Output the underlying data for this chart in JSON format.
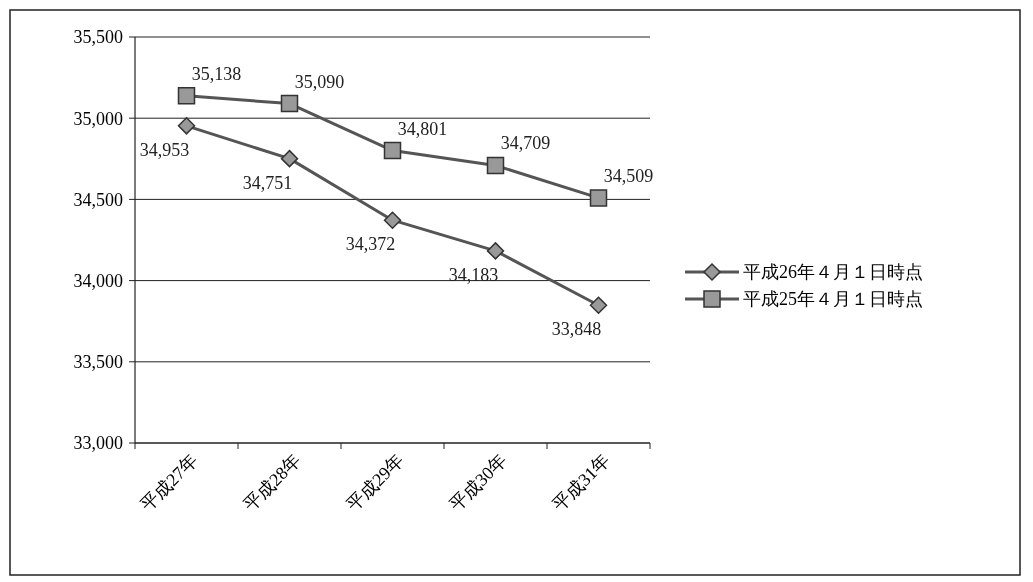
{
  "chart_data": {
    "type": "line",
    "categories": [
      "平成27年",
      "平成28年",
      "平成29年",
      "平成30年",
      "平成31年"
    ],
    "series": [
      {
        "name": "平成26年４月１日時点",
        "color": "#555555",
        "marker": "diamond",
        "values": [
          34953,
          34751,
          34372,
          34183,
          33848
        ],
        "value_labels": [
          "34,953",
          "34,751",
          "34,372",
          "34,183",
          "33,848"
        ]
      },
      {
        "name": "平成25年４月１日時点",
        "color": "#555555",
        "marker": "square",
        "values": [
          35138,
          35090,
          34801,
          34709,
          34509
        ],
        "value_labels": [
          "35,138",
          "35,090",
          "34,801",
          "34,709",
          "34,509"
        ]
      }
    ],
    "ylim": [
      33000,
      35500
    ],
    "yticks": [
      {
        "value": 33000,
        "label": "33,000"
      },
      {
        "value": 33500,
        "label": "33,500"
      },
      {
        "value": 34000,
        "label": "34,000"
      },
      {
        "value": 34500,
        "label": "34,500"
      },
      {
        "value": 35000,
        "label": "35,000"
      },
      {
        "value": 35500,
        "label": "35,500"
      }
    ],
    "grid": "y",
    "legend": "right"
  }
}
